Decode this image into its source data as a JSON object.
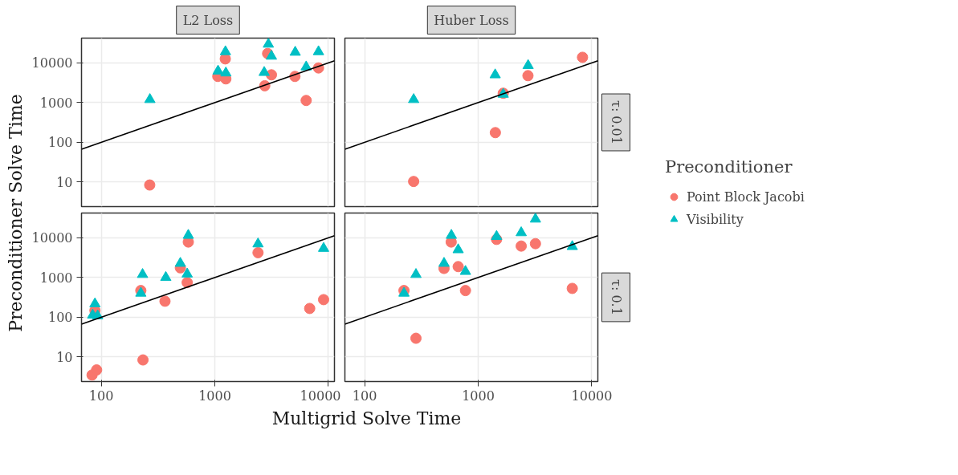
{
  "chart_data": [
    {
      "type": "scatter",
      "title": "L2 Loss",
      "ylabel": "Preconditioner Solve Time",
      "xlim": [
        67,
        11300
      ],
      "ylim": [
        2.4,
        42000
      ],
      "xticks": [
        100,
        1000,
        10000
      ],
      "yticks": [
        10,
        100,
        1000,
        10000
      ],
      "log": "xy",
      "grid": true,
      "tick_labels": "y",
      "series": [
        {
          "color": "#f8766d",
          "marker": "circle",
          "x": [
            267,
            1236,
            1062,
            1250,
            2915,
            3150,
            2750,
            5070,
            6370,
            8180
          ],
          "values": [
            8.4,
            12600,
            4550,
            3950,
            17200,
            4990,
            2650,
            4550,
            1130,
            7450
          ]
        },
        {
          "color": "#00bfc4",
          "marker": "triangle",
          "x": [
            268,
            1240,
            1067,
            1250,
            2960,
            3150,
            2720,
            5100,
            6370,
            8180
          ],
          "values": [
            1190,
            19100,
            6200,
            5560,
            29500,
            14700,
            5730,
            18500,
            7900,
            19100
          ]
        },
        {
          "type": "line",
          "color": "#000000",
          "x": [
            67,
            11300
          ],
          "values": [
            67,
            11300
          ]
        }
      ]
    },
    {
      "type": "scatter",
      "title": "Huber Loss",
      "annotations": [
        "τ: 0.01"
      ],
      "legend_title": "Preconditioner",
      "legend": "right",
      "xlim": [
        67,
        11300
      ],
      "ylim": [
        2.4,
        42000
      ],
      "xticks": [
        100,
        1000,
        10000
      ],
      "yticks": [
        10,
        100,
        1000,
        10000
      ],
      "log": "xy",
      "grid": true,
      "tick_labels": false,
      "series": [
        {
          "name": "Point Block Jacobi",
          "color": "#f8766d",
          "marker": "circle",
          "x": [
            270,
            1415,
            1660,
            2740,
            8280
          ],
          "values": [
            10.3,
            175,
            1720,
            4760,
            13800
          ]
        },
        {
          "name": "Visibility",
          "color": "#00bfc4",
          "marker": "triangle",
          "x": [
            270,
            1410,
            1660,
            2750
          ],
          "values": [
            1190,
            4990,
            1620,
            8570
          ]
        },
        {
          "type": "line",
          "color": "#000000",
          "x": [
            67,
            11300
          ],
          "values": [
            67,
            11300
          ]
        }
      ]
    },
    {
      "type": "scatter",
      "xlabel": "Multigrid Solve Time",
      "xlim": [
        67,
        11300
      ],
      "ylim": [
        2.4,
        42000
      ],
      "xticks": [
        100,
        1000,
        10000
      ],
      "yticks": [
        10,
        100,
        1000,
        10000
      ],
      "log": "xy",
      "grid": true,
      "series": [
        {
          "color": "#f8766d",
          "marker": "circle",
          "x": [
            83,
            91,
            88,
            233,
            223,
            364,
            497,
            571,
            584,
            2400,
            6840,
            9070
          ],
          "values": [
            3.5,
            4.7,
            147,
            8.4,
            469,
            253,
            1750,
            745,
            7820,
            4210,
            166,
            277
          ]
        },
        {
          "color": "#00bfc4",
          "marker": "triangle",
          "x": [
            88,
            84,
            93,
            231,
            223,
            370,
            497,
            571,
            584,
            2400,
            9070
          ],
          "values": [
            217,
            113,
            108,
            1190,
            402,
            1000,
            2270,
            1220,
            11500,
            7010,
            5400
          ]
        },
        {
          "type": "line",
          "color": "#000000",
          "x": [
            67,
            11300
          ],
          "values": [
            67,
            11300
          ]
        }
      ]
    },
    {
      "type": "scatter",
      "annotations": [
        "τ: 0.1"
      ],
      "xlim": [
        67,
        11300
      ],
      "ylim": [
        2.4,
        42000
      ],
      "xticks": [
        100,
        1000,
        10000
      ],
      "yticks": [
        10,
        100,
        1000,
        10000
      ],
      "log": "xy",
      "grid": true,
      "tick_labels": "x",
      "series": [
        {
          "color": "#f8766d",
          "marker": "circle",
          "x": [
            283,
            222,
            500,
            578,
            666,
            772,
            1450,
            2390,
            3190,
            6730
          ],
          "values": [
            29.5,
            469,
            1690,
            7820,
            1880,
            469,
            9110,
            6190,
            7110,
            531
          ]
        },
        {
          "color": "#00bfc4",
          "marker": "triangle",
          "x": [
            222,
            283,
            500,
            580,
            666,
            772,
            1450,
            2390,
            3190,
            6730
          ],
          "values": [
            402,
            1190,
            2270,
            11500,
            4990,
            1420,
            10800,
            13400,
            29500,
            6010
          ]
        },
        {
          "type": "line",
          "color": "#000000",
          "x": [
            67,
            11300
          ],
          "values": [
            67,
            11300
          ]
        }
      ]
    }
  ]
}
